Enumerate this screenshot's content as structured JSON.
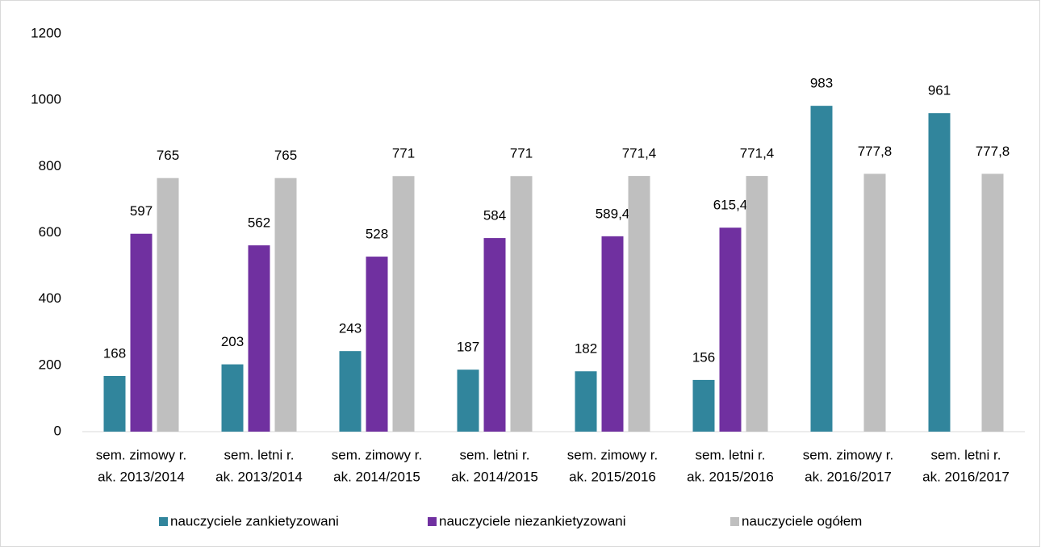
{
  "chart_data": {
    "type": "bar",
    "categories": [
      [
        "sem. zimowy r.",
        "ak. 2013/2014"
      ],
      [
        "sem. letni r.",
        "ak. 2013/2014"
      ],
      [
        "sem. zimowy r.",
        "ak. 2014/2015"
      ],
      [
        "sem. letni r.",
        "ak. 2014/2015"
      ],
      [
        "sem. zimowy r.",
        "ak. 2015/2016"
      ],
      [
        "sem. letni r.",
        "ak. 2015/2016"
      ],
      [
        "sem. zimowy r.",
        "ak. 2016/2017"
      ],
      [
        "sem. letni r.",
        "ak. 2016/2017"
      ]
    ],
    "series": [
      {
        "name": "nauczyciele zankietyzowani",
        "color": "#31859c",
        "values": [
          168,
          203,
          243,
          187,
          182,
          156,
          983,
          961
        ]
      },
      {
        "name": "nauczyciele niezankietyzowani",
        "color": "#7030a0",
        "values": [
          597,
          562,
          528,
          584,
          589.4,
          615.4,
          null,
          null
        ],
        "value_labels": [
          "597",
          "562",
          "528",
          "584",
          "589,4",
          "615,4",
          null,
          null
        ]
      },
      {
        "name": "nauczyciele ogółem",
        "color": "#bfbfbf",
        "values": [
          765,
          765,
          771,
          771,
          771.4,
          771.4,
          777.8,
          777.8
        ],
        "value_labels": [
          "765",
          "765",
          "771",
          "771",
          "771,4",
          "771,4",
          "777,8",
          "777,8"
        ]
      }
    ],
    "ylim": [
      0,
      1200
    ],
    "yticks": [
      0,
      200,
      400,
      600,
      800,
      1000,
      1200
    ],
    "grid": false,
    "legend": "bottom"
  }
}
